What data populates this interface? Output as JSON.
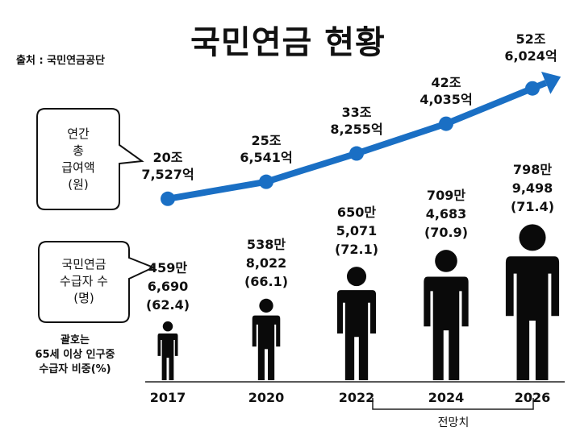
{
  "title": "국민연금 현황",
  "source": "출처 : 국민연금공단",
  "bubbles": {
    "payment": [
      "연간",
      "총",
      "급여액",
      "(원)"
    ],
    "recipients": [
      "국민연금",
      "수급자 수",
      "(명)"
    ]
  },
  "pct_note": [
    "괄호는",
    "65세 이상 인구중",
    "수급자 비중(%)"
  ],
  "projection_label": "전망치",
  "colors": {
    "line": "#1a6fc4",
    "figure": "#0a0a0a",
    "text": "#111111"
  },
  "chart_data": {
    "type": "line",
    "x": [
      "2017",
      "2020",
      "2022",
      "2024",
      "2026"
    ],
    "series": [
      {
        "name": "연간 총 급여액(원)",
        "values": [
          20752700000000,
          25654100000000,
          33825500000000,
          42403500000000,
          52602400000000
        ],
        "labels": [
          [
            "20조",
            "7,527억"
          ],
          [
            "25조",
            "6,541억"
          ],
          [
            "33조",
            "8,255억"
          ],
          [
            "42조",
            "4,035억"
          ],
          [
            "52조",
            "6,024억"
          ]
        ]
      },
      {
        "name": "국민연금 수급자 수(명)",
        "values": [
          4596690,
          5388022,
          6505071,
          7094683,
          7989498
        ],
        "labels": [
          [
            "459만",
            "6,690"
          ],
          [
            "538만",
            "8,022"
          ],
          [
            "650만",
            "5,071"
          ],
          [
            "709만",
            "4,683"
          ],
          [
            "798만",
            "9,498"
          ]
        ]
      },
      {
        "name": "65세 이상 인구중 수급자 비중(%)",
        "values": [
          62.4,
          66.1,
          72.1,
          70.9,
          71.4
        ],
        "labels": [
          "(62.4)",
          "(66.1)",
          "(72.1)",
          "(70.9)",
          "(71.4)"
        ]
      }
    ],
    "projection_from": "2024"
  }
}
